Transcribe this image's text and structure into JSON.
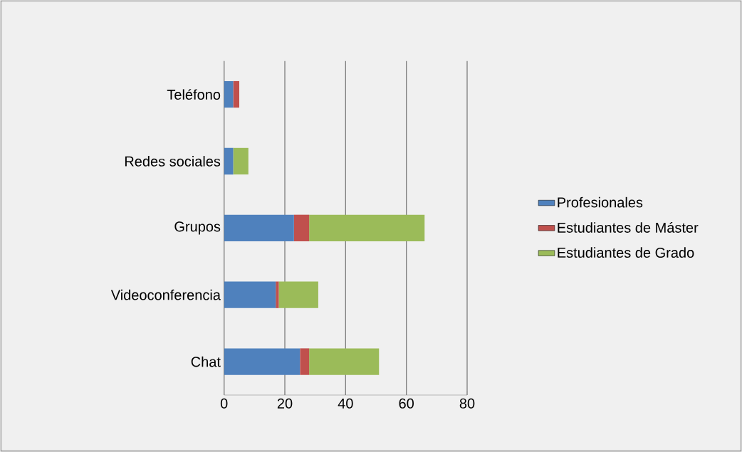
{
  "chart_data": {
    "type": "bar",
    "orientation": "horizontal",
    "stacked": true,
    "categories": [
      "Teléfono",
      "Redes sociales",
      "Grupos",
      "Videoconferencia",
      "Chat"
    ],
    "series": [
      {
        "name": "Profesionales",
        "color": "#4f81bd",
        "values": [
          3,
          3,
          23,
          17,
          25
        ]
      },
      {
        "name": "Estudiantes de Máster",
        "color": "#c0504d",
        "values": [
          2,
          0,
          5,
          1,
          3
        ]
      },
      {
        "name": "Estudiantes de Grado",
        "color": "#9bbb59",
        "values": [
          0,
          5,
          38,
          13,
          23
        ]
      }
    ],
    "xlim": [
      0,
      80
    ],
    "xticks": [
      0,
      20,
      40,
      60,
      80
    ],
    "grid": "x",
    "legend": "right"
  }
}
